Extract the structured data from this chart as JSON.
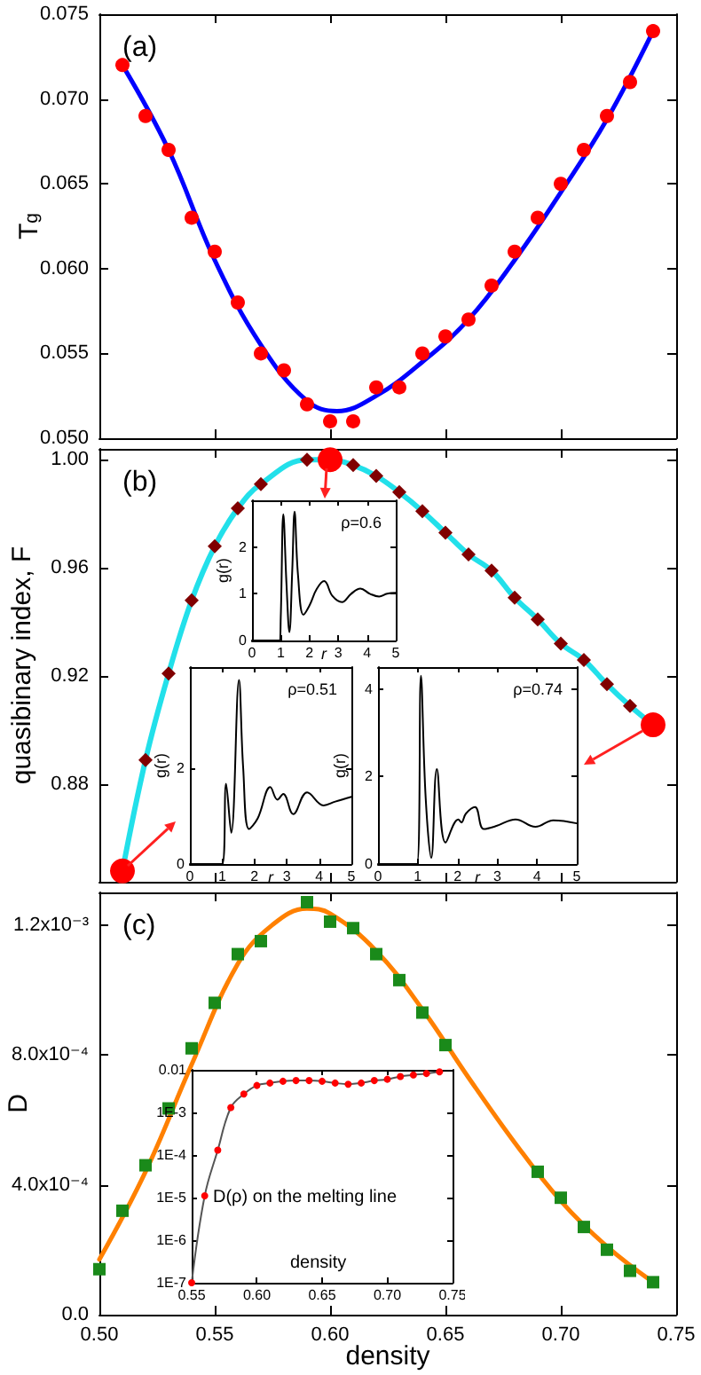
{
  "chart_data": [
    {
      "type": "scatter",
      "title": "(a)",
      "ylabel": "T$_{g}$",
      "xlim": [
        0.5,
        0.75
      ],
      "xticks": [
        0.5,
        0.55,
        0.6,
        0.65,
        0.7,
        0.75
      ],
      "ylim": [
        0.05,
        0.075
      ],
      "yticks": [
        {
          "value": 0.05,
          "label": "0.050"
        },
        {
          "value": 0.055,
          "label": "0.055"
        },
        {
          "value": 0.06,
          "label": "0.060"
        },
        {
          "value": 0.065,
          "label": "0.065"
        },
        {
          "value": 0.07,
          "label": "0.070"
        },
        {
          "value": 0.075,
          "label": "0.075"
        }
      ],
      "tick_labels": "y",
      "series": [
        {
          "color": "#ff0000",
          "marker": "circle",
          "x": [
            0.51,
            0.52,
            0.53,
            0.54,
            0.55,
            0.56,
            0.57,
            0.58,
            0.59,
            0.6,
            0.61,
            0.62,
            0.63,
            0.64,
            0.65,
            0.66,
            0.67,
            0.68,
            0.69,
            0.7,
            0.71,
            0.72,
            0.73,
            0.74
          ],
          "values": [
            0.072,
            0.069,
            0.067,
            0.063,
            0.061,
            0.058,
            0.055,
            0.054,
            0.052,
            0.051,
            0.051,
            0.053,
            0.053,
            0.055,
            0.056,
            0.057,
            0.059,
            0.061,
            0.063,
            0.065,
            0.067,
            0.069,
            0.071,
            0.074
          ]
        },
        {
          "type": "line",
          "color": "#0000ff",
          "marker": "none",
          "x": [
            0.51,
            0.53,
            0.55,
            0.57,
            0.59,
            0.603,
            0.62,
            0.64,
            0.66,
            0.68,
            0.7,
            0.72,
            0.74
          ],
          "values": [
            0.072,
            0.067,
            0.0605,
            0.0555,
            0.0522,
            0.0516,
            0.0525,
            0.0545,
            0.057,
            0.0605,
            0.0645,
            0.0688,
            0.074
          ]
        }
      ]
    },
    {
      "type": "line",
      "title": "(b)",
      "ylabel": "quasibinary index, F",
      "xlim": [
        0.5,
        0.75
      ],
      "xticks": [
        0.5,
        0.55,
        0.6,
        0.65,
        0.7,
        0.75
      ],
      "ylim": [
        0.844,
        1.004
      ],
      "yticks": [
        0.88,
        0.92,
        0.96,
        {
          "value": 1,
          "label": "1.00"
        }
      ],
      "tick_labels": "y",
      "series": [
        {
          "color": "#22e0ea",
          "marker": "none",
          "x": [
            0.51,
            0.52,
            0.53,
            0.54,
            0.55,
            0.56,
            0.57,
            0.59,
            0.6,
            0.61,
            0.62,
            0.63,
            0.64,
            0.65,
            0.66,
            0.67,
            0.68,
            0.69,
            0.7,
            0.71,
            0.72,
            0.73,
            0.74
          ],
          "values": [
            0.848,
            0.889,
            0.921,
            0.948,
            0.968,
            0.982,
            0.991,
            1.0,
            1.0,
            0.998,
            0.994,
            0.988,
            0.981,
            0.973,
            0.965,
            0.959,
            0.949,
            0.941,
            0.932,
            0.926,
            0.917,
            0.909,
            0.902
          ]
        },
        {
          "type": "scatter",
          "color": "#800000",
          "marker": "diamond",
          "x": [
            0.52,
            0.53,
            0.54,
            0.55,
            0.56,
            0.57,
            0.59,
            0.61,
            0.62,
            0.63,
            0.64,
            0.65,
            0.66,
            0.67,
            0.68,
            0.69,
            0.7,
            0.71,
            0.72,
            0.73
          ],
          "values": [
            0.889,
            0.921,
            0.948,
            0.968,
            0.982,
            0.991,
            1.0,
            0.998,
            0.994,
            0.988,
            0.981,
            0.973,
            0.965,
            0.959,
            0.949,
            0.941,
            0.932,
            0.926,
            0.917,
            0.909
          ]
        },
        {
          "type": "scatter",
          "color": "#ff0000",
          "marker": "circle",
          "x": [
            0.51,
            0.6,
            0.74
          ],
          "values": [
            0.848,
            1.0,
            0.902
          ]
        }
      ]
    },
    {
      "type": "scatter",
      "title": "(c)",
      "xlabel": "density",
      "ylabel": "D",
      "xlim": [
        0.5,
        0.75
      ],
      "xticks": [
        {
          "value": 0.5,
          "label": "0.50"
        },
        0.55,
        {
          "value": 0.6,
          "label": "0.60"
        },
        0.65,
        {
          "value": 0.7,
          "label": "0.70"
        },
        0.75
      ],
      "ylim": [
        0,
        0.0013
      ],
      "yticks": [
        {
          "value": 0,
          "label": "0.0"
        },
        {
          "value": 0.0004,
          "label": "4.0x10⁻⁴"
        },
        {
          "value": 0.0008,
          "label": "8.0x10⁻⁴"
        },
        {
          "value": 0.0012,
          "label": "1.2x10⁻³"
        }
      ],
      "series": [
        {
          "color": "#1a8a1a",
          "marker": "square",
          "x": [
            0.5,
            0.51,
            0.52,
            0.53,
            0.54,
            0.55,
            0.56,
            0.57,
            0.59,
            0.6,
            0.61,
            0.62,
            0.63,
            0.64,
            0.65,
            0.69,
            0.7,
            0.71,
            0.72,
            0.73,
            0.74
          ],
          "values": [
            0.00014,
            0.00032,
            0.00046,
            0.000635,
            0.00082,
            0.00096,
            0.00111,
            0.00115,
            0.00127,
            0.00121,
            0.00119,
            0.00111,
            0.00103,
            0.00093,
            0.00083,
            0.00044,
            0.00036,
            0.00027,
            0.0002,
            0.000135,
            0.0001
          ]
        },
        {
          "type": "line",
          "color": "#ff8000",
          "marker": "none",
          "x": [
            0.5,
            0.52,
            0.54,
            0.56,
            0.575,
            0.59,
            0.6,
            0.62,
            0.64,
            0.66,
            0.68,
            0.7,
            0.72,
            0.74
          ],
          "values": [
            0.00017,
            0.00044,
            0.00077,
            0.00108,
            0.0012,
            0.00125,
            0.001235,
            0.00112,
            0.00094,
            0.00073,
            0.00053,
            0.00035,
            0.00021,
            0.0001
          ]
        }
      ]
    },
    {
      "type": "line",
      "xlabel": "r",
      "ylabel": "g(r)",
      "annotations": [
        "ρ=0.6"
      ],
      "xlim": [
        0,
        5
      ],
      "xticks": [
        0,
        1,
        2,
        3,
        4,
        5
      ],
      "ylim": [
        0,
        3
      ],
      "yticks": [
        0,
        1,
        2
      ],
      "series": [
        {
          "color": "#000000",
          "marker": "none",
          "x": [
            0,
            0.95,
            1.0,
            1.09,
            1.2,
            1.3,
            1.4,
            1.48,
            1.6,
            1.79,
            2.0,
            2.25,
            2.51,
            2.8,
            3.13,
            3.45,
            3.77,
            4.1,
            4.42,
            4.7,
            5
          ],
          "values": [
            0,
            0,
            0.5,
            2.7,
            1.2,
            0.18,
            1.5,
            2.76,
            1.4,
            0.55,
            0.75,
            1.1,
            1.27,
            0.95,
            0.82,
            1.0,
            1.11,
            1.0,
            0.94,
            1.0,
            1.02
          ]
        }
      ]
    },
    {
      "type": "line",
      "xlabel": "r",
      "ylabel": "g(r)",
      "annotations": [
        "ρ=0.51"
      ],
      "xlim": [
        0,
        5
      ],
      "xticks": [
        0,
        1,
        2,
        3,
        4,
        5
      ],
      "ylim": [
        0,
        4.1
      ],
      "yticks": [
        0,
        2
      ],
      "series": [
        {
          "color": "#000000",
          "marker": "none",
          "x": [
            0,
            1.0,
            1.12,
            1.28,
            1.52,
            1.65,
            1.83,
            2.1,
            2.49,
            2.71,
            2.89,
            3.2,
            3.63,
            4.14,
            4.5,
            5
          ],
          "values": [
            0,
            0,
            1.67,
            0.65,
            3.83,
            2.0,
            0.73,
            0.95,
            1.6,
            1.34,
            1.46,
            1.04,
            1.49,
            1.22,
            1.3,
            1.4
          ]
        }
      ]
    },
    {
      "type": "line",
      "xlabel": "r",
      "ylabel": "g(r)",
      "annotations": [
        "ρ=0.74"
      ],
      "xlim": [
        0,
        5
      ],
      "xticks": [
        0,
        1,
        2,
        3,
        4,
        5
      ],
      "ylim": [
        0,
        4.5
      ],
      "yticks": [
        0,
        2,
        4
      ],
      "series": [
        {
          "color": "#000000",
          "marker": "none",
          "x": [
            0,
            0.98,
            1.08,
            1.2,
            1.34,
            1.48,
            1.7,
            2.02,
            2.1,
            2.21,
            2.44,
            2.66,
            2.98,
            3.46,
            3.96,
            4.41,
            5
          ],
          "values": [
            0,
            0,
            4.3,
            1.5,
            0.14,
            2.17,
            0.49,
            1.02,
            0.95,
            1.15,
            1.3,
            0.8,
            0.87,
            1.02,
            0.85,
            1.0,
            0.93
          ]
        }
      ]
    },
    {
      "type": "line",
      "xlabel": "density",
      "annotations": [
        "D(ρ) on the melting line"
      ],
      "log": "y",
      "xlim": [
        0.55,
        0.75
      ],
      "xticks": [
        0.55,
        {
          "value": 0.6,
          "label": "0.60"
        },
        0.65,
        {
          "value": 0.7,
          "label": "0.70"
        },
        0.75
      ],
      "ylim": [
        1e-07,
        0.01
      ],
      "yticks": [
        {
          "value": 1e-07,
          "label": "1E-7"
        },
        {
          "value": 1e-06,
          "label": "1E-6"
        },
        {
          "value": 1e-05,
          "label": "1E-5"
        },
        {
          "value": 0.0001,
          "label": "1E-4"
        },
        {
          "value": 0.001,
          "label": "1E-3"
        },
        0.01
      ],
      "series": [
        {
          "color": "#555555",
          "marker": "none",
          "x": [
            0.55,
            0.56,
            0.57,
            0.58,
            0.59,
            0.6,
            0.61,
            0.62,
            0.63,
            0.64,
            0.65,
            0.66,
            0.67,
            0.68,
            0.69,
            0.7,
            0.71,
            0.72,
            0.73,
            0.74
          ],
          "values": [
            1e-07,
            1.1e-05,
            0.00013,
            0.0013,
            0.0027,
            0.0043,
            0.0049,
            0.0054,
            0.0056,
            0.0056,
            0.0054,
            0.0049,
            0.0046,
            0.0049,
            0.0056,
            0.006,
            0.007,
            0.0076,
            0.0082,
            0.009
          ]
        },
        {
          "type": "scatter",
          "color": "#ff0000",
          "marker": "circle",
          "x": [
            0.55,
            0.56,
            0.57,
            0.58,
            0.59,
            0.6,
            0.61,
            0.62,
            0.63,
            0.64,
            0.65,
            0.66,
            0.67,
            0.68,
            0.69,
            0.7,
            0.71,
            0.72,
            0.73,
            0.74
          ],
          "values": [
            1e-07,
            1.1e-05,
            0.00013,
            0.0013,
            0.0027,
            0.0043,
            0.0049,
            0.0054,
            0.0056,
            0.0056,
            0.0054,
            0.0049,
            0.0046,
            0.0049,
            0.0056,
            0.006,
            0.007,
            0.0076,
            0.0082,
            0.009
          ]
        }
      ]
    }
  ]
}
